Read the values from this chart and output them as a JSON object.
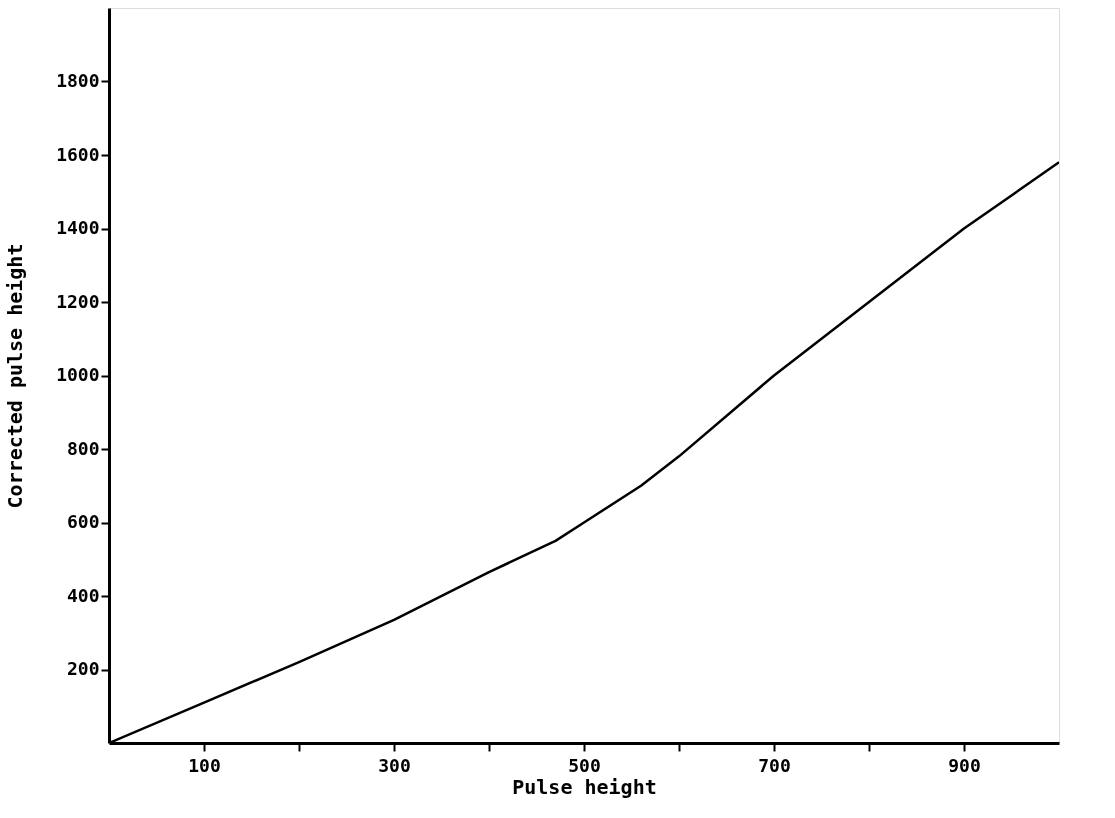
{
  "chart_data": {
    "type": "line",
    "xlabel": "Pulse height",
    "ylabel": "Corrected pulse height",
    "x": [
      0,
      100,
      200,
      300,
      400,
      470,
      500,
      560,
      600,
      700,
      800,
      900,
      1000
    ],
    "series": [
      {
        "color": "#000000",
        "values": [
          0,
          110,
          220,
          335,
          465,
          550,
          600,
          700,
          780,
          1000,
          1200,
          1400,
          1580
        ]
      }
    ],
    "xlim": [
      0,
      1000
    ],
    "ylim": [
      0,
      2000
    ],
    "xticks": [
      {
        "value": 100,
        "label": "100"
      },
      {
        "value": 200,
        "label": null
      },
      {
        "value": 300,
        "label": "300"
      },
      {
        "value": 400,
        "label": null
      },
      {
        "value": 500,
        "label": "500"
      },
      {
        "value": 600,
        "label": null
      },
      {
        "value": 700,
        "label": "700"
      },
      {
        "value": 800,
        "label": null
      },
      {
        "value": 900,
        "label": "900"
      }
    ],
    "yticks": [
      200,
      400,
      600,
      800,
      1000,
      1200,
      1400,
      1600,
      1800
    ],
    "grid": false,
    "marker": "none",
    "line_style": "solid"
  }
}
